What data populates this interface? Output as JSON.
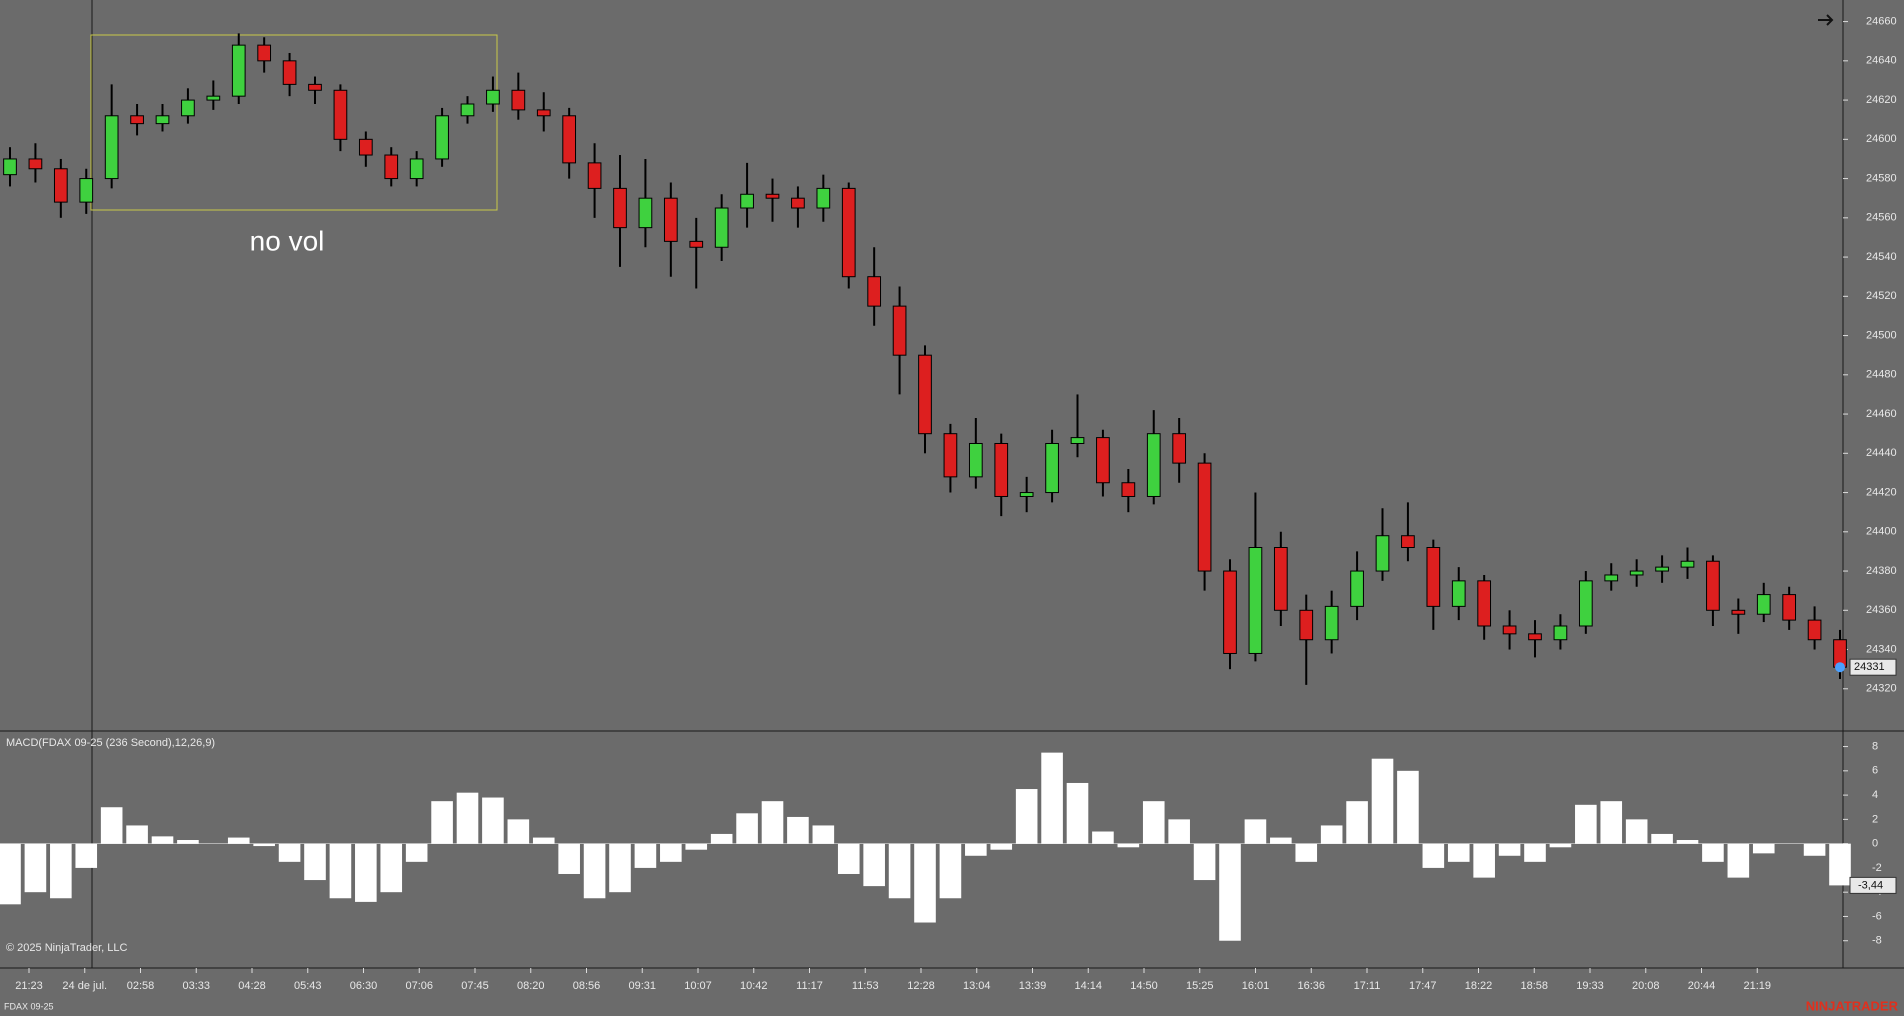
{
  "chart_data": [
    {
      "type": "candlestick",
      "annotation": "no vol",
      "up_color": "#3fd13f",
      "down_color": "#dd1f1f",
      "wick_color": "#000000",
      "ylim": [
        24299,
        24671
      ],
      "yticks": [
        24320,
        24340,
        24360,
        24380,
        24400,
        24420,
        24440,
        24460,
        24480,
        24500,
        24520,
        24540,
        24560,
        24580,
        24600,
        24620,
        24640,
        24660
      ],
      "open": [
        24582,
        24590,
        24585,
        24568,
        24580,
        24612,
        24608,
        24612,
        24620,
        24622,
        24648,
        24640,
        24628,
        24625,
        24600,
        24592,
        24580,
        24590,
        24612,
        24618,
        24625,
        24615,
        24612,
        24588,
        24575,
        24555,
        24570,
        24548,
        24545,
        24565,
        24572,
        24570,
        24565,
        24575,
        24530,
        24515,
        24490,
        24450,
        24428,
        24445,
        24418,
        24420,
        24445,
        24448,
        24425,
        24418,
        24450,
        24435,
        24380,
        24338,
        24392,
        24360,
        24345,
        24362,
        24380,
        24398,
        24392,
        24362,
        24375,
        24352,
        24348,
        24345,
        24352,
        24375,
        24378,
        24380,
        24382,
        24385,
        24360,
        24358,
        24368,
        24355,
        24345
      ],
      "high": [
        24596,
        24598,
        24590,
        24585,
        24628,
        24618,
        24618,
        24626,
        24630,
        24654,
        24652,
        24644,
        24632,
        24628,
        24604,
        24596,
        24594,
        24616,
        24622,
        24632,
        24634,
        24624,
        24616,
        24598,
        24592,
        24590,
        24578,
        24560,
        24572,
        24588,
        24580,
        24576,
        24582,
        24578,
        24545,
        24525,
        24495,
        24455,
        24458,
        24450,
        24428,
        24452,
        24470,
        24452,
        24432,
        24462,
        24458,
        24440,
        24386,
        24420,
        24400,
        24368,
        24370,
        24390,
        24412,
        24415,
        24396,
        24382,
        24378,
        24360,
        24355,
        24358,
        24380,
        24384,
        24386,
        24388,
        24392,
        24388,
        24366,
        24374,
        24372,
        24362,
        24350
      ],
      "low": [
        24576,
        24578,
        24560,
        24562,
        24575,
        24602,
        24604,
        24608,
        24615,
        24618,
        24634,
        24622,
        24618,
        24594,
        24586,
        24576,
        24576,
        24586,
        24608,
        24614,
        24610,
        24604,
        24580,
        24560,
        24535,
        24545,
        24530,
        24524,
        24538,
        24555,
        24558,
        24555,
        24558,
        24524,
        24505,
        24470,
        24440,
        24420,
        24422,
        24408,
        24410,
        24415,
        24438,
        24418,
        24410,
        24414,
        24425,
        24370,
        24330,
        24334,
        24352,
        24322,
        24338,
        24355,
        24375,
        24385,
        24350,
        24355,
        24345,
        24340,
        24336,
        24340,
        24348,
        24370,
        24372,
        24374,
        24376,
        24352,
        24348,
        24354,
        24350,
        24340,
        24325
      ],
      "close": [
        24590,
        24585,
        24568,
        24580,
        24612,
        24608,
        24612,
        24620,
        24622,
        24648,
        24640,
        24628,
        24625,
        24600,
        24592,
        24580,
        24590,
        24612,
        24618,
        24625,
        24615,
        24612,
        24588,
        24575,
        24555,
        24570,
        24548,
        24545,
        24565,
        24572,
        24570,
        24565,
        24575,
        24530,
        24515,
        24490,
        24450,
        24428,
        24445,
        24418,
        24420,
        24445,
        24448,
        24425,
        24418,
        24450,
        24435,
        24380,
        24338,
        24392,
        24360,
        24345,
        24362,
        24380,
        24398,
        24392,
        24362,
        24375,
        24352,
        24348,
        24345,
        24352,
        24375,
        24378,
        24380,
        24382,
        24385,
        24360,
        24358,
        24368,
        24355,
        24345,
        24331
      ],
      "time_labels": [
        "21:23",
        "24 de jul.",
        "02:58",
        "03:33",
        "04:28",
        "05:43",
        "06:30",
        "07:06",
        "07:45",
        "08:20",
        "08:56",
        "09:31",
        "10:07",
        "10:42",
        "11:17",
        "11:53",
        "12:28",
        "13:04",
        "13:39",
        "14:14",
        "14:50",
        "15:25",
        "16:01",
        "16:36",
        "17:11",
        "17:47",
        "18:22",
        "18:58",
        "19:33",
        "20:08",
        "20:44",
        "21:19"
      ]
    },
    {
      "type": "bar",
      "title": "MACD(FDAX 09-25 (236 Second),12,26,9)",
      "color": "#ffffff",
      "ylim": [
        -10,
        9.2
      ],
      "yticks": [
        -8,
        -6,
        -4,
        -2,
        0,
        2,
        4,
        6,
        8
      ],
      "values": [
        -5,
        -4,
        -4.5,
        -2,
        3,
        1.5,
        0.6,
        0.3,
        0,
        0.5,
        -0.2,
        -1.5,
        -3,
        -4.5,
        -4.8,
        -4,
        -1.5,
        3.5,
        4.2,
        3.8,
        2,
        0.5,
        -2.5,
        -4.5,
        -4,
        -2,
        -1.5,
        -0.5,
        0.8,
        2.5,
        3.5,
        2.2,
        1.5,
        -2.5,
        -3.5,
        -4.5,
        -6.5,
        -4.5,
        -1,
        -0.5,
        4.5,
        7.5,
        5,
        1,
        -0.3,
        3.5,
        2,
        -3,
        -8,
        2,
        0.5,
        -1.5,
        1.5,
        3.5,
        7,
        6,
        -2,
        -1.5,
        -2.8,
        -1,
        -1.5,
        -0.3,
        3.2,
        3.5,
        2,
        0.8,
        0.3,
        -1.5,
        -2.8,
        -0.8,
        0,
        -1,
        -3.44
      ],
      "last_label": "-3,44"
    }
  ],
  "footer": {
    "copyright": "© 2025 NinjaTrader, LLC",
    "instrument": "FDAX 09-25",
    "brand": "NINJATRADER"
  }
}
